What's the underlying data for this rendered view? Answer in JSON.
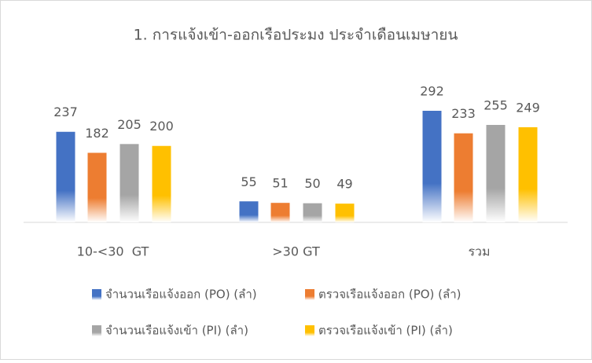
{
  "chart_data": {
    "type": "bar",
    "title": "1. การแจ้งเข้า-ออกเรือประมง ประจำเดือนเมษายน",
    "categories": [
      "10-<30  GT",
      ">30 GT",
      "รวม"
    ],
    "series": [
      {
        "name": "จำนวนเรือแจ้งออก (PO) (ลำ)",
        "color": "#4472c4",
        "values": [
          237,
          55,
          292
        ]
      },
      {
        "name": "ตรวจเรือแจ้งออก (PO) (ลำ)",
        "color": "#ed7d31",
        "values": [
          182,
          51,
          233
        ]
      },
      {
        "name": "จำนวนเรือแจ้งเข้า (PI) (ลำ)",
        "color": "#a5a5a5",
        "values": [
          205,
          50,
          255
        ]
      },
      {
        "name": "ตรวจเรือแจ้งเข้า (PI) (ลำ)",
        "color": "#ffc000",
        "values": [
          200,
          49,
          249
        ]
      }
    ]
  }
}
